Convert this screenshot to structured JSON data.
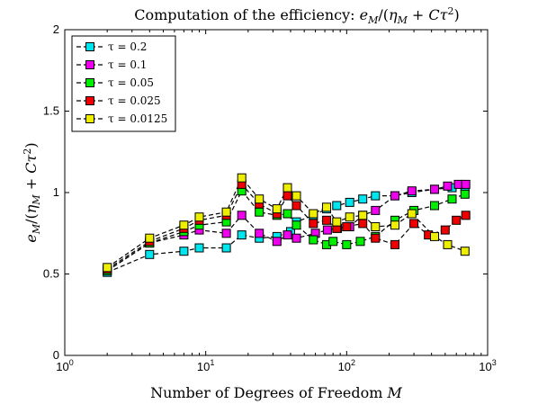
{
  "chart_data": {
    "type": "line",
    "title": "Computation of the efficiency: e_M/(η_M + Cτ²)",
    "xlabel": "Number of Degrees of Freedom M",
    "ylabel": "e_M/(η_M + Cτ²)",
    "xscale": "log",
    "xlim": [
      1,
      1000
    ],
    "ylim": [
      0,
      2
    ],
    "xticks": [
      1,
      10,
      100,
      1000
    ],
    "xtick_labels": [
      {
        "base": "10",
        "exp": "0"
      },
      {
        "base": "10",
        "exp": "1"
      },
      {
        "base": "10",
        "exp": "2"
      },
      {
        "base": "10",
        "exp": "3"
      }
    ],
    "yticks": [
      0,
      0.5,
      1,
      1.5,
      2
    ],
    "ytick_labels": [
      "0",
      "0.5",
      "1",
      "1.5",
      "2"
    ],
    "grid": false,
    "legend_position": "top-left",
    "series": [
      {
        "name": "τ = 0.2",
        "color": "#00e5ee",
        "x": [
          2,
          4,
          7,
          9,
          14,
          18,
          24,
          32,
          40,
          44,
          58,
          72,
          85,
          105,
          130,
          160,
          220,
          290,
          420,
          560,
          690
        ],
        "y": [
          0.51,
          0.62,
          0.64,
          0.66,
          0.66,
          0.74,
          0.72,
          0.73,
          0.76,
          0.82,
          0.86,
          0.9,
          0.92,
          0.94,
          0.96,
          0.98,
          0.98,
          1.0,
          1.02,
          1.03,
          1.03
        ]
      },
      {
        "name": "τ = 0.1",
        "color": "#ee00ee",
        "x": [
          2,
          4,
          7,
          9,
          14,
          18,
          24,
          32,
          38,
          44,
          60,
          73,
          86,
          105,
          130,
          160,
          220,
          290,
          420,
          520,
          620,
          700
        ],
        "y": [
          0.52,
          0.69,
          0.74,
          0.77,
          0.75,
          0.86,
          0.75,
          0.7,
          0.74,
          0.72,
          0.75,
          0.77,
          0.78,
          0.79,
          0.86,
          0.89,
          0.98,
          1.01,
          1.02,
          1.04,
          1.05,
          1.05
        ]
      },
      {
        "name": "τ = 0.05",
        "color": "#00ee00",
        "x": [
          2,
          4,
          7,
          9,
          14,
          18,
          24,
          32,
          38,
          44,
          58,
          72,
          80,
          100,
          125,
          160,
          220,
          300,
          420,
          560,
          690
        ],
        "y": [
          0.52,
          0.69,
          0.76,
          0.8,
          0.82,
          1.01,
          0.88,
          0.86,
          0.87,
          0.8,
          0.71,
          0.68,
          0.7,
          0.68,
          0.7,
          0.73,
          0.83,
          0.89,
          0.92,
          0.96,
          0.99
        ]
      },
      {
        "name": "τ = 0.025",
        "color": "#ee0000",
        "x": [
          2,
          4,
          7,
          9,
          14,
          18,
          24,
          32,
          38,
          44,
          58,
          72,
          85,
          100,
          130,
          160,
          220,
          300,
          380,
          500,
          600,
          700
        ],
        "y": [
          0.53,
          0.7,
          0.78,
          0.83,
          0.86,
          1.05,
          0.93,
          0.87,
          0.98,
          0.92,
          0.81,
          0.83,
          0.78,
          0.79,
          0.81,
          0.72,
          0.68,
          0.81,
          0.74,
          0.77,
          0.83,
          0.86
        ]
      },
      {
        "name": "τ = 0.0125",
        "color": "#eeee00",
        "x": [
          2,
          4,
          7,
          9,
          14,
          18,
          24,
          32,
          38,
          44,
          58,
          72,
          85,
          105,
          130,
          160,
          220,
          290,
          420,
          520,
          690
        ],
        "y": [
          0.54,
          0.72,
          0.8,
          0.85,
          0.88,
          1.09,
          0.96,
          0.9,
          1.03,
          0.98,
          0.87,
          0.91,
          0.82,
          0.85,
          0.86,
          0.79,
          0.8,
          0.87,
          0.73,
          0.68,
          0.64
        ]
      }
    ]
  }
}
